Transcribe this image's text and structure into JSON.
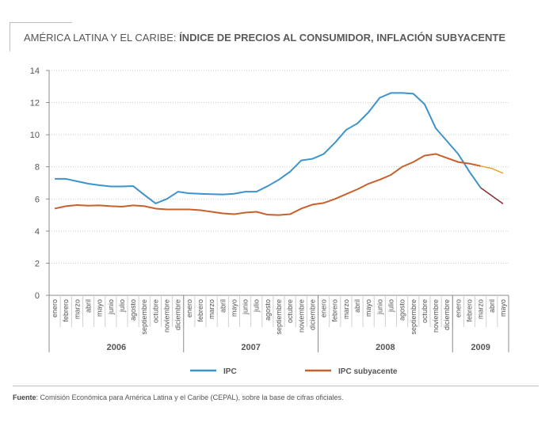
{
  "header": {
    "title_prefix": "AMÉRICA LATINA Y EL CARIBE:",
    "title_main": "ÍNDICE DE PRECIOS AL CONSUMIDOR,  INFLACIÓN SUBYACENTE"
  },
  "footer": {
    "source_label": "Fuente",
    "source_text": ":  Comisión Económica para América Latina y el Caribe (CEPAL), sobre la base de cifras oficiales."
  },
  "colors": {
    "ipc": "#3d93cc",
    "ipc_forecast": "#8b2a2a",
    "sub": "#c8602c",
    "sub_forecast": "#f0a030",
    "grid": "#c8c8c8",
    "axis": "#8c8c8c",
    "text": "#555555"
  },
  "chart_data": {
    "type": "line",
    "title": "ÍNDICE DE PRECIOS AL CONSUMIDOR,  INFLACIÓN SUBYACENTE",
    "xlabel": "",
    "ylabel": "",
    "ylim": [
      0,
      14
    ],
    "yticks": [
      0,
      2,
      4,
      6,
      8,
      10,
      12,
      14
    ],
    "grid": true,
    "legend_position": "bottom",
    "months": [
      "enero",
      "febrero",
      "marzo",
      "abril",
      "mayo",
      "junio",
      "julio",
      "agosto",
      "septiembre",
      "octubre",
      "noviembre",
      "diciembre",
      "enero",
      "febrero",
      "marzo",
      "abril",
      "mayo",
      "junio",
      "julio",
      "agosto",
      "septiembre",
      "octubre",
      "noviembre",
      "diciembre",
      "enero",
      "febrero",
      "marzo",
      "abril",
      "mayo",
      "junio",
      "julio",
      "agosto",
      "septiembre",
      "octubre",
      "noviembre",
      "diciembre",
      "enero",
      "febrero",
      "marzo",
      "abril",
      "mayo"
    ],
    "years": [
      {
        "label": "2006",
        "months": 12
      },
      {
        "label": "2007",
        "months": 12
      },
      {
        "label": "2008",
        "months": 12
      },
      {
        "label": "2009",
        "months": 5
      }
    ],
    "series": [
      {
        "name": "IPC",
        "values": [
          7.25,
          7.25,
          7.1,
          6.95,
          6.85,
          6.78,
          6.78,
          6.8,
          6.25,
          5.72,
          6.0,
          6.45,
          6.35,
          6.32,
          6.3,
          6.28,
          6.32,
          6.45,
          6.45,
          6.8,
          7.2,
          7.7,
          8.4,
          8.5,
          8.8,
          9.5,
          10.3,
          10.7,
          11.4,
          12.3,
          12.6,
          12.6,
          12.55,
          11.9,
          10.4,
          9.6,
          8.8,
          7.7,
          6.7,
          6.2,
          5.7
        ]
      },
      {
        "name": "IPC subyacente",
        "values": [
          5.4,
          5.55,
          5.62,
          5.58,
          5.6,
          5.55,
          5.52,
          5.6,
          5.55,
          5.4,
          5.35,
          5.35,
          5.35,
          5.3,
          5.2,
          5.1,
          5.05,
          5.15,
          5.2,
          5.02,
          5.0,
          5.05,
          5.4,
          5.65,
          5.75,
          6.0,
          6.3,
          6.6,
          6.95,
          7.2,
          7.5,
          8.0,
          8.3,
          8.7,
          8.8,
          8.55,
          8.3,
          8.2,
          8.05,
          7.9,
          7.6
        ]
      }
    ],
    "forecast_start_index": 38
  }
}
